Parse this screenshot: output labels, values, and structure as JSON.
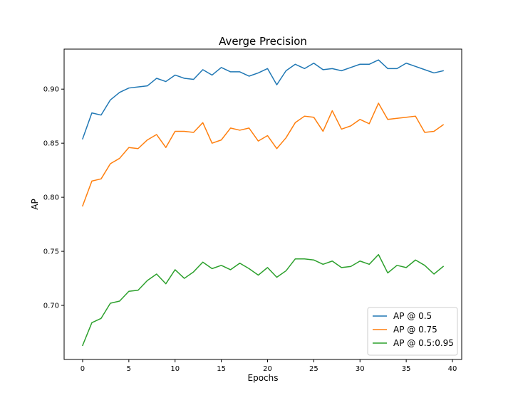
{
  "chart_data": {
    "type": "line",
    "title": "Averge Precision",
    "xlabel": "Epochs",
    "ylabel": "AP",
    "xlim": [
      -2,
      41
    ],
    "ylim": [
      0.65,
      0.937
    ],
    "xticks": [
      0,
      5,
      10,
      15,
      20,
      25,
      30,
      35,
      40
    ],
    "xtick_labels": [
      "0",
      "5",
      "10",
      "15",
      "20",
      "25",
      "30",
      "35",
      "40"
    ],
    "yticks": [
      0.7,
      0.75,
      0.8,
      0.85,
      0.9
    ],
    "ytick_labels": [
      "0.70",
      "0.75",
      "0.80",
      "0.85",
      "0.90"
    ],
    "grid": false,
    "legend_position": "lower-right",
    "x": [
      0,
      1,
      2,
      3,
      4,
      5,
      6,
      7,
      8,
      9,
      10,
      11,
      12,
      13,
      14,
      15,
      16,
      17,
      18,
      19,
      20,
      21,
      22,
      23,
      24,
      25,
      26,
      27,
      28,
      29,
      30,
      31,
      32,
      33,
      34,
      35,
      36,
      37,
      38,
      39
    ],
    "series": [
      {
        "name": "AP @ 0.5",
        "color": "#1f77b4",
        "values": [
          0.854,
          0.878,
          0.876,
          0.89,
          0.897,
          0.901,
          0.902,
          0.903,
          0.91,
          0.907,
          0.913,
          0.91,
          0.909,
          0.918,
          0.913,
          0.92,
          0.916,
          0.916,
          0.912,
          0.915,
          0.919,
          0.904,
          0.917,
          0.923,
          0.919,
          0.924,
          0.918,
          0.919,
          0.917,
          0.92,
          0.923,
          0.923,
          0.927,
          0.919,
          0.919,
          0.924,
          0.921,
          0.918,
          0.915,
          0.917
        ]
      },
      {
        "name": "AP @ 0.75",
        "color": "#ff7f0e",
        "values": [
          0.792,
          0.815,
          0.817,
          0.831,
          0.836,
          0.846,
          0.845,
          0.853,
          0.858,
          0.846,
          0.861,
          0.861,
          0.86,
          0.869,
          0.85,
          0.853,
          0.864,
          0.862,
          0.864,
          0.852,
          0.857,
          0.845,
          0.855,
          0.869,
          0.875,
          0.874,
          0.861,
          0.88,
          0.863,
          0.866,
          0.872,
          0.868,
          0.887,
          0.872,
          0.873,
          0.874,
          0.875,
          0.86,
          0.861,
          0.867
        ]
      },
      {
        "name": "AP @ 0.5:0.95",
        "color": "#2ca02c",
        "values": [
          0.663,
          0.684,
          0.688,
          0.702,
          0.704,
          0.713,
          0.714,
          0.723,
          0.729,
          0.72,
          0.733,
          0.725,
          0.731,
          0.74,
          0.734,
          0.737,
          0.733,
          0.739,
          0.734,
          0.728,
          0.735,
          0.726,
          0.732,
          0.743,
          0.743,
          0.742,
          0.738,
          0.741,
          0.735,
          0.736,
          0.741,
          0.738,
          0.747,
          0.73,
          0.737,
          0.735,
          0.742,
          0.737,
          0.729,
          0.736
        ]
      }
    ]
  }
}
